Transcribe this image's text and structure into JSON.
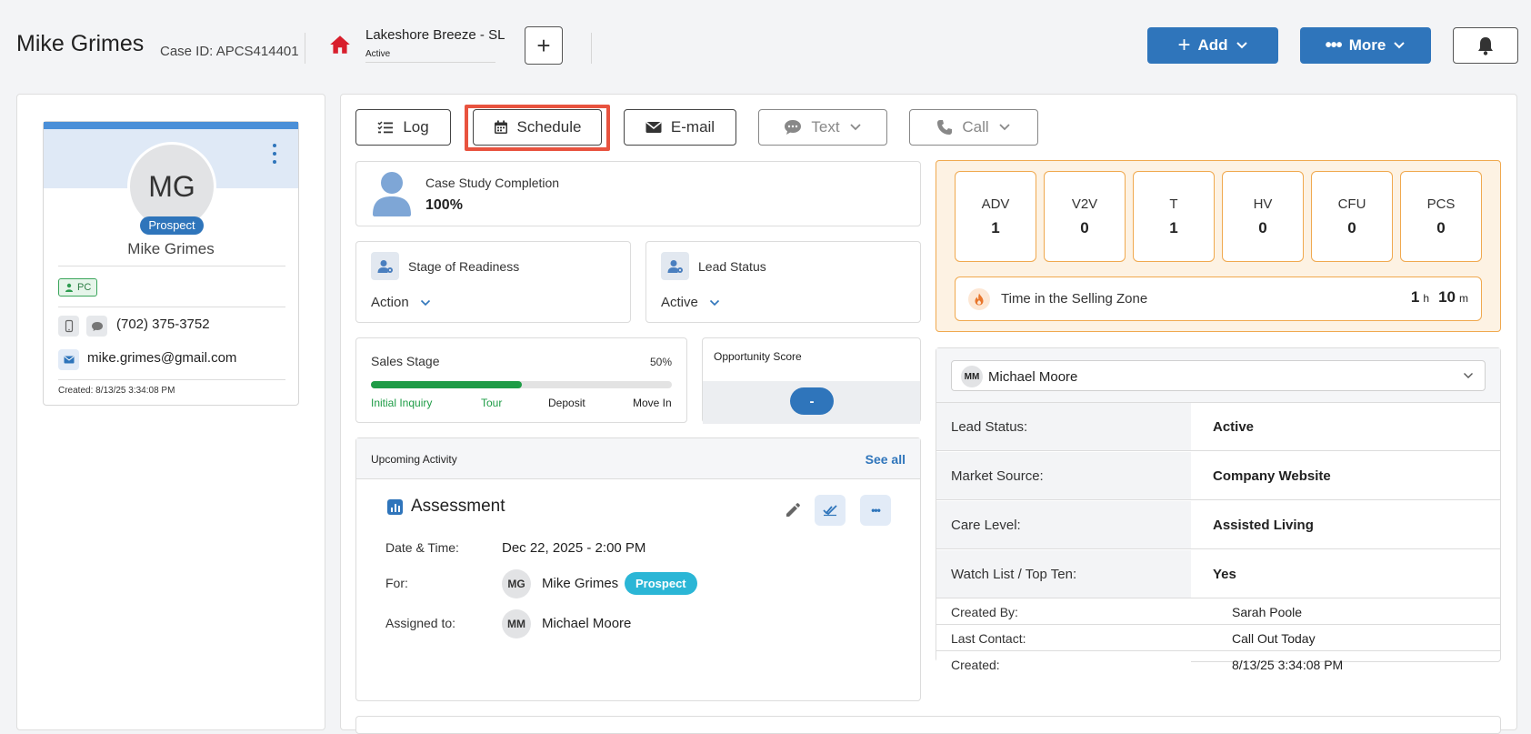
{
  "header": {
    "name": "Mike Grimes",
    "case_id": "Case ID: APCS414401",
    "community": "Lakeshore Breeze - SL",
    "community_status": "Active",
    "plus_label": "+",
    "add_label": "Add",
    "more_label": "More"
  },
  "profile": {
    "initials": "MG",
    "badge": "Prospect",
    "name": "Mike Grimes",
    "tag": "PC",
    "phone": "(702) 375-3752",
    "email": "mike.grimes@gmail.com",
    "created": "Created: 8/13/25 3:34:08 PM"
  },
  "actions": {
    "log": "Log",
    "schedule": "Schedule",
    "email": "E-mail",
    "text": "Text",
    "call": "Call"
  },
  "case_study": {
    "label": "Case Study Completion",
    "value": "100%"
  },
  "readiness": {
    "label": "Stage of Readiness",
    "value": "Action"
  },
  "lead_status_card": {
    "label": "Lead Status",
    "value": "Active"
  },
  "sales_stage": {
    "label": "Sales Stage",
    "percent_label": "50%",
    "progress": 0.5,
    "stages": [
      "Initial Inquiry",
      "Tour",
      "Deposit",
      "Move In"
    ],
    "completed_color": "#1e9c46"
  },
  "opportunity": {
    "label": "Opportunity Score",
    "value": "-"
  },
  "stats": [
    {
      "label": "ADV",
      "value": "1"
    },
    {
      "label": "V2V",
      "value": "0"
    },
    {
      "label": "T",
      "value": "1"
    },
    {
      "label": "HV",
      "value": "0"
    },
    {
      "label": "CFU",
      "value": "0"
    },
    {
      "label": "PCS",
      "value": "0"
    }
  ],
  "selling_zone": {
    "label": "Time in the Selling Zone",
    "hours": "1",
    "h": "h",
    "minutes": "10",
    "m": "m"
  },
  "upcoming": {
    "title": "Upcoming Activity",
    "see_all": "See all",
    "activity_title": "Assessment",
    "date_label": "Date & Time:",
    "date_value": "Dec 22, 2025 - 2:00 PM",
    "for_label": "For:",
    "for_initials": "MG",
    "for_name": "Mike Grimes",
    "for_badge": "Prospect",
    "assigned_label": "Assigned to:",
    "assigned_initials": "MM",
    "assigned_name": "Michael Moore"
  },
  "assignee": {
    "initials": "MM",
    "name": "Michael Moore"
  },
  "details": [
    {
      "key": "Lead Status:",
      "value": "Active"
    },
    {
      "key": "Market Source:",
      "value": "Company Website"
    },
    {
      "key": "Care Level:",
      "value": "Assisted Living"
    },
    {
      "key": "Watch List / Top Ten:",
      "value": "Yes"
    }
  ],
  "details_plain": [
    {
      "key": "Created By:",
      "value": "Sarah Poole"
    },
    {
      "key": "Last Contact:",
      "value": "Call Out Today"
    },
    {
      "key": "Created:",
      "value": "8/13/25 3:34:08 PM"
    }
  ],
  "colors": {
    "primary": "#2f75bb",
    "highlight": "#e8533f",
    "orange": "#f0a94f",
    "prospect_teal": "#2bb6d6"
  }
}
